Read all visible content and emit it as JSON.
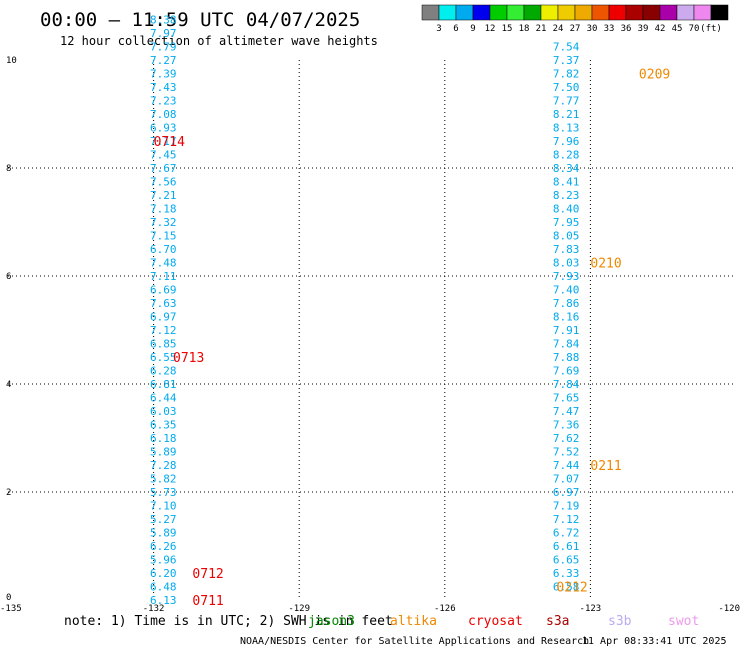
{
  "header": {
    "title": "00:00 – 11:59 UTC 04/07/2025",
    "subtitle": "12 hour collection of altimeter wave heights"
  },
  "colorbar": {
    "colors": [
      "#808080",
      "#00eeee",
      "#00aaee",
      "#0000ee",
      "#00cc00",
      "#33ee33",
      "#00aa00",
      "#eeee00",
      "#eecc00",
      "#eeaa00",
      "#ee5500",
      "#ee0000",
      "#aa0000",
      "#880000",
      "#aa00aa",
      "#ccaaee",
      "#ee88ee",
      "#000000"
    ],
    "labels": [
      "3",
      "6",
      "9",
      "12",
      "15",
      "18",
      "21",
      "24",
      "27",
      "30",
      "33",
      "36",
      "39",
      "42",
      "45",
      "70",
      "(ft)"
    ]
  },
  "chart_data": {
    "type": "scatter",
    "xlim": [
      -135,
      -120
    ],
    "ylim": [
      0,
      10
    ],
    "x_ticks": [
      "-135",
      "-132",
      "-129",
      "-126",
      "-123",
      "-120"
    ],
    "y_ticks": [
      "0",
      "2",
      "4",
      "6",
      "8",
      "10"
    ],
    "grid": true,
    "series": [
      {
        "track": "west",
        "color": "#00aaee",
        "points": [
          {
            "lon": -131.8,
            "lat": 0.0,
            "v": "6.13"
          },
          {
            "lon": -131.8,
            "lat": 0.25,
            "v": "6.48"
          },
          {
            "lon": -131.8,
            "lat": 0.5,
            "v": "6.20"
          },
          {
            "lon": -131.8,
            "lat": 0.75,
            "v": "5.96"
          },
          {
            "lon": -131.8,
            "lat": 1.0,
            "v": "6.26"
          },
          {
            "lon": -131.8,
            "lat": 1.25,
            "v": "5.89"
          },
          {
            "lon": -131.8,
            "lat": 1.5,
            "v": "5.27"
          },
          {
            "lon": -131.8,
            "lat": 1.75,
            "v": "7.10"
          },
          {
            "lon": -131.8,
            "lat": 2.0,
            "v": "5.73"
          },
          {
            "lon": -131.8,
            "lat": 2.25,
            "v": "5.82"
          },
          {
            "lon": -131.8,
            "lat": 2.5,
            "v": "7.28"
          },
          {
            "lon": -131.8,
            "lat": 2.75,
            "v": "5.89"
          },
          {
            "lon": -131.8,
            "lat": 3.0,
            "v": "6.18"
          },
          {
            "lon": -131.8,
            "lat": 3.25,
            "v": "6.35"
          },
          {
            "lon": -131.8,
            "lat": 3.5,
            "v": "6.03"
          },
          {
            "lon": -131.8,
            "lat": 3.75,
            "v": "6.44"
          },
          {
            "lon": -131.8,
            "lat": 4.0,
            "v": "6.81"
          },
          {
            "lon": -131.8,
            "lat": 4.25,
            "v": "6.28"
          },
          {
            "lon": -131.8,
            "lat": 4.5,
            "v": "6.55"
          },
          {
            "lon": -131.8,
            "lat": 4.75,
            "v": "6.85"
          },
          {
            "lon": -131.8,
            "lat": 5.0,
            "v": "7.12"
          },
          {
            "lon": -131.8,
            "lat": 5.25,
            "v": "6.97"
          },
          {
            "lon": -131.8,
            "lat": 5.5,
            "v": "7.63"
          },
          {
            "lon": -131.8,
            "lat": 5.75,
            "v": "6.69"
          },
          {
            "lon": -131.8,
            "lat": 6.0,
            "v": "7.11"
          },
          {
            "lon": -131.8,
            "lat": 6.25,
            "v": "7.48"
          },
          {
            "lon": -131.8,
            "lat": 6.5,
            "v": "6.70"
          },
          {
            "lon": -131.8,
            "lat": 6.75,
            "v": "7.15"
          },
          {
            "lon": -131.8,
            "lat": 7.0,
            "v": "7.32"
          },
          {
            "lon": -131.8,
            "lat": 7.25,
            "v": "7.18"
          },
          {
            "lon": -131.8,
            "lat": 7.5,
            "v": "7.21"
          },
          {
            "lon": -131.8,
            "lat": 7.75,
            "v": "7.56"
          },
          {
            "lon": -131.8,
            "lat": 8.0,
            "v": "7.67"
          },
          {
            "lon": -131.8,
            "lat": 8.25,
            "v": "7.45"
          },
          {
            "lon": -131.8,
            "lat": 8.5,
            "v": "7.17"
          },
          {
            "lon": -131.8,
            "lat": 8.75,
            "v": "6.93"
          },
          {
            "lon": -131.8,
            "lat": 9.0,
            "v": "7.08"
          },
          {
            "lon": -131.8,
            "lat": 9.25,
            "v": "7.23"
          },
          {
            "lon": -131.8,
            "lat": 9.5,
            "v": "7.43"
          },
          {
            "lon": -131.8,
            "lat": 9.75,
            "v": "7.39"
          },
          {
            "lon": -131.8,
            "lat": 10.0,
            "v": "7.27"
          },
          {
            "lon": -131.8,
            "lat": 10.25,
            "v": "7.79"
          },
          {
            "lon": -131.8,
            "lat": 10.5,
            "v": "7.97"
          },
          {
            "lon": -131.8,
            "lat": 10.75,
            "v": "8.38"
          }
        ]
      },
      {
        "track": "east",
        "color": "#00aaee",
        "points": [
          {
            "lon": -123.5,
            "lat": 0.25,
            "v": "6.58"
          },
          {
            "lon": -123.5,
            "lat": 0.5,
            "v": "6.33"
          },
          {
            "lon": -123.5,
            "lat": 0.75,
            "v": "6.65"
          },
          {
            "lon": -123.5,
            "lat": 1.0,
            "v": "6.61"
          },
          {
            "lon": -123.5,
            "lat": 1.25,
            "v": "6.72"
          },
          {
            "lon": -123.5,
            "lat": 1.5,
            "v": "7.12"
          },
          {
            "lon": -123.5,
            "lat": 1.75,
            "v": "7.19"
          },
          {
            "lon": -123.5,
            "lat": 2.0,
            "v": "6.97"
          },
          {
            "lon": -123.5,
            "lat": 2.25,
            "v": "7.07"
          },
          {
            "lon": -123.5,
            "lat": 2.5,
            "v": "7.44"
          },
          {
            "lon": -123.5,
            "lat": 2.75,
            "v": "7.52"
          },
          {
            "lon": -123.5,
            "lat": 3.0,
            "v": "7.62"
          },
          {
            "lon": -123.5,
            "lat": 3.25,
            "v": "7.36"
          },
          {
            "lon": -123.5,
            "lat": 3.5,
            "v": "7.47"
          },
          {
            "lon": -123.5,
            "lat": 3.75,
            "v": "7.65"
          },
          {
            "lon": -123.5,
            "lat": 4.0,
            "v": "7.84"
          },
          {
            "lon": -123.5,
            "lat": 4.25,
            "v": "7.69"
          },
          {
            "lon": -123.5,
            "lat": 4.5,
            "v": "7.88"
          },
          {
            "lon": -123.5,
            "lat": 4.75,
            "v": "7.84"
          },
          {
            "lon": -123.5,
            "lat": 5.0,
            "v": "7.91"
          },
          {
            "lon": -123.5,
            "lat": 5.25,
            "v": "8.16"
          },
          {
            "lon": -123.5,
            "lat": 5.5,
            "v": "7.86"
          },
          {
            "lon": -123.5,
            "lat": 5.75,
            "v": "7.40"
          },
          {
            "lon": -123.5,
            "lat": 6.0,
            "v": "7.93"
          },
          {
            "lon": -123.5,
            "lat": 6.25,
            "v": "8.03"
          },
          {
            "lon": -123.5,
            "lat": 6.5,
            "v": "7.83"
          },
          {
            "lon": -123.5,
            "lat": 6.75,
            "v": "8.05"
          },
          {
            "lon": -123.5,
            "lat": 7.0,
            "v": "7.95"
          },
          {
            "lon": -123.5,
            "lat": 7.25,
            "v": "8.40"
          },
          {
            "lon": -123.5,
            "lat": 7.5,
            "v": "8.23"
          },
          {
            "lon": -123.5,
            "lat": 7.75,
            "v": "8.41"
          },
          {
            "lon": -123.5,
            "lat": 8.0,
            "v": "8.34"
          },
          {
            "lon": -123.5,
            "lat": 8.25,
            "v": "8.28"
          },
          {
            "lon": -123.5,
            "lat": 8.5,
            "v": "7.96"
          },
          {
            "lon": -123.5,
            "lat": 8.75,
            "v": "8.13"
          },
          {
            "lon": -123.5,
            "lat": 9.0,
            "v": "8.21"
          },
          {
            "lon": -123.5,
            "lat": 9.25,
            "v": "7.77"
          },
          {
            "lon": -123.5,
            "lat": 9.5,
            "v": "7.50"
          },
          {
            "lon": -123.5,
            "lat": 9.75,
            "v": "7.82"
          },
          {
            "lon": -123.5,
            "lat": 10.0,
            "v": "7.37"
          },
          {
            "lon": -123.5,
            "lat": 10.25,
            "v": "7.54"
          }
        ]
      }
    ],
    "time_labels": [
      {
        "text": "0711",
        "color": "#ee0000",
        "lon": -131.2,
        "lat": 0.0
      },
      {
        "text": "0712",
        "color": "#ee0000",
        "lon": -131.2,
        "lat": 0.5
      },
      {
        "text": "0713",
        "color": "#ee0000",
        "lon": -131.6,
        "lat": 4.5
      },
      {
        "text": "0714",
        "color": "#ee0000",
        "lon": -132.0,
        "lat": 8.5
      },
      {
        "text": "0212",
        "color": "#ee8800",
        "lon": -123.7,
        "lat": 0.25
      },
      {
        "text": "0211",
        "color": "#ee8800",
        "lon": -123.0,
        "lat": 2.5
      },
      {
        "text": "0210",
        "color": "#ee8800",
        "lon": -123.0,
        "lat": 6.25
      },
      {
        "text": "0209",
        "color": "#ee8800",
        "lon": -122.0,
        "lat": 9.75
      }
    ]
  },
  "footer": {
    "note": "note: 1) Time is in UTC; 2) SWH is in feet",
    "satellites": [
      {
        "name": "jason3",
        "color": "#008800"
      },
      {
        "name": "altika",
        "color": "#ee8800"
      },
      {
        "name": "cryosat",
        "color": "#ee0000"
      },
      {
        "name": "s3a",
        "color": "#aa0000"
      },
      {
        "name": "s3b",
        "color": "#bbaaee"
      },
      {
        "name": "swot",
        "color": "#ee99ee"
      }
    ],
    "credit": "NOAA/NESDIS Center for Satellite Applications and Research",
    "timestamp": "11 Apr 08:33:41 UTC 2025"
  }
}
